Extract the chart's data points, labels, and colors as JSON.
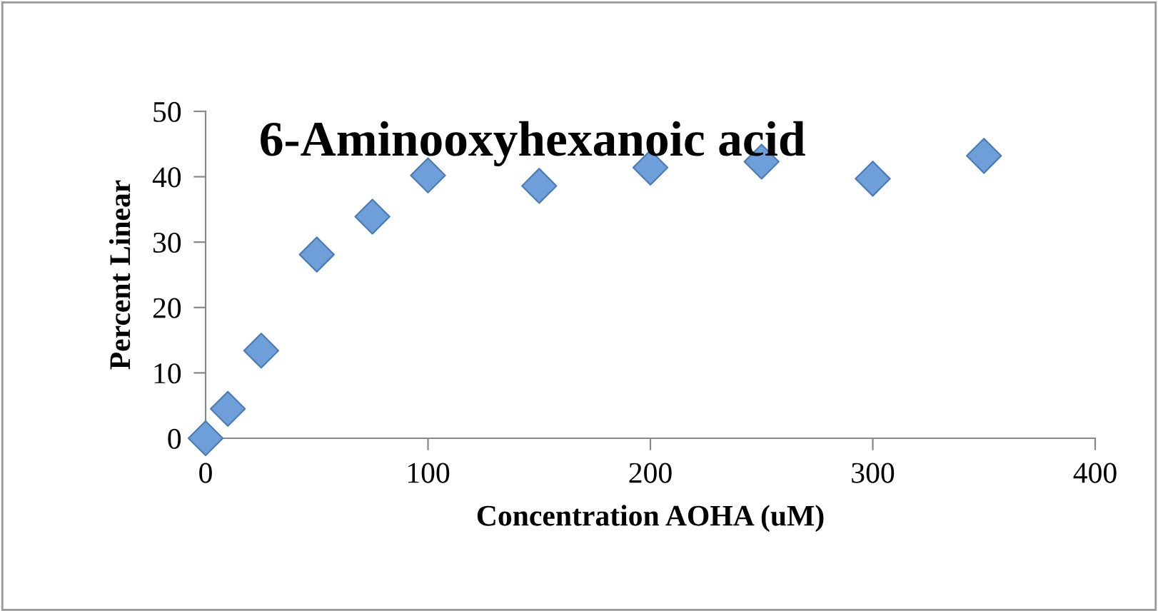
{
  "chart_data": {
    "type": "scatter",
    "title": "6-Aminooxyhexanoic acid",
    "xlabel": "Concentration AOHA (uM)",
    "ylabel": "Percent Linear",
    "x": [
      0,
      10,
      25,
      50,
      75,
      100,
      150,
      200,
      250,
      300,
      350
    ],
    "series": [
      {
        "color": "#6f9fd8",
        "values": [
          0,
          4.5,
          13.4,
          28.1,
          33.9,
          40.2,
          38.6,
          41.4,
          42.3,
          39.7,
          43.2
        ]
      }
    ],
    "xlim": [
      0,
      400
    ],
    "xticks": [
      0,
      100,
      200,
      300,
      400
    ],
    "ylim": [
      0,
      50
    ],
    "yticks": [
      0,
      10,
      20,
      30,
      40,
      50
    ],
    "grid": false,
    "legend": false,
    "marker": "diamond"
  }
}
